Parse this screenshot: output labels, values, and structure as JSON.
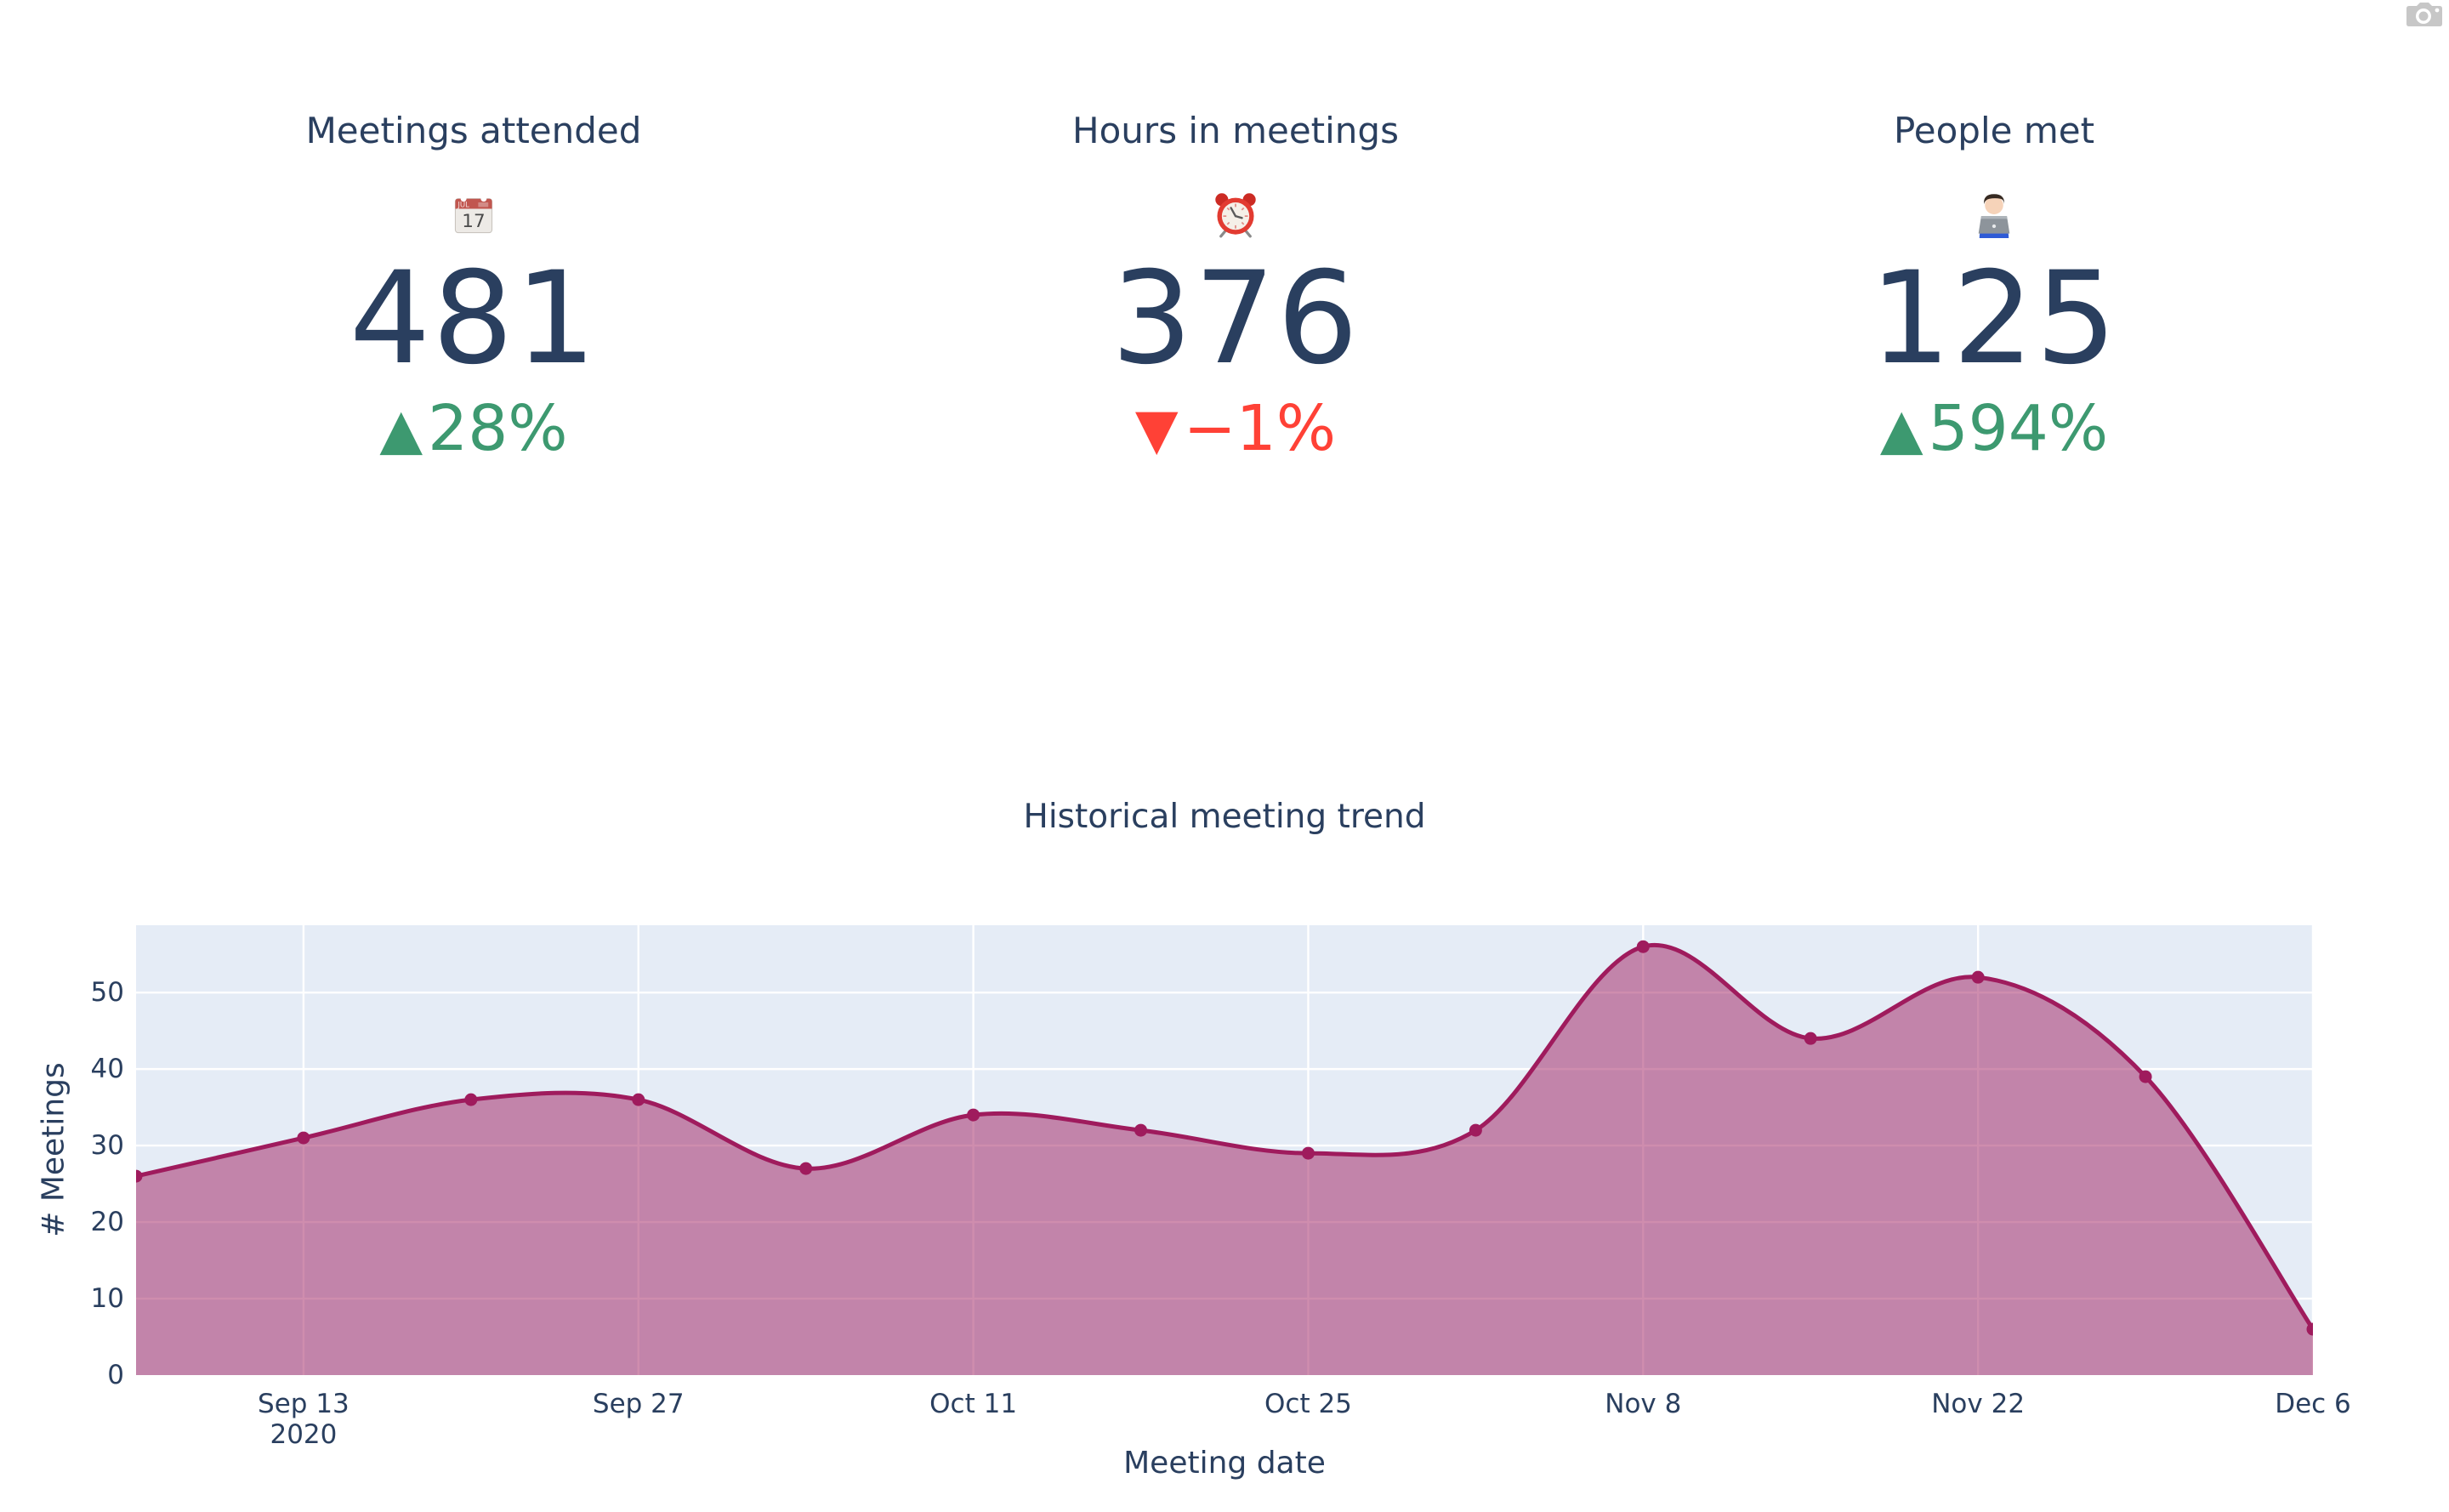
{
  "kpis": [
    {
      "title": "Meetings attended",
      "icon": "calendar-emoji",
      "value": "481",
      "symbol": "▲",
      "delta": "28%",
      "direction": "up"
    },
    {
      "title": "Hours in meetings",
      "icon": "alarm-clock-emoji",
      "value": "376",
      "symbol": "▼",
      "delta": "−1%",
      "direction": "down"
    },
    {
      "title": "People met",
      "icon": "technologist-emoji",
      "value": "125",
      "symbol": "▲",
      "delta": "594%",
      "direction": "up"
    }
  ],
  "colors": {
    "text": "#2A3F5F",
    "increasing": "#3D9970",
    "decreasing": "#FF4136",
    "line": "#9F1B5D",
    "fill_opacity": 0.5,
    "plot_background": "#E5ECF6",
    "grid": "#FFFFFF",
    "modebar_icon": "#C7C7C7"
  },
  "modebar": {
    "icon": "camera-icon"
  },
  "chart_data": {
    "type": "area",
    "title": "Historical meeting trend",
    "xlabel": "Meeting date",
    "ylabel": "# Meetings",
    "line_shape": "spline",
    "markers": true,
    "grid": true,
    "legend": false,
    "x": [
      "2020-09-06",
      "2020-09-13",
      "2020-09-20",
      "2020-09-27",
      "2020-10-04",
      "2020-10-11",
      "2020-10-18",
      "2020-10-25",
      "2020-11-01",
      "2020-11-08",
      "2020-11-15",
      "2020-11-22",
      "2020-11-29",
      "2020-12-06"
    ],
    "values": [
      26,
      31,
      36,
      36,
      27,
      34,
      32,
      29,
      32,
      56,
      44,
      52,
      39,
      6
    ],
    "yticks": [
      0,
      10,
      20,
      30,
      40,
      50
    ],
    "ylim": [
      0,
      58.8
    ],
    "xticks": [
      {
        "index": 1,
        "label": "Sep 13",
        "sublabel": "2020"
      },
      {
        "index": 3,
        "label": "Sep 27"
      },
      {
        "index": 5,
        "label": "Oct 11"
      },
      {
        "index": 7,
        "label": "Oct 25"
      },
      {
        "index": 9,
        "label": "Nov 8"
      },
      {
        "index": 11,
        "label": "Nov 22"
      },
      {
        "index": 13,
        "label": "Dec 6"
      }
    ]
  }
}
